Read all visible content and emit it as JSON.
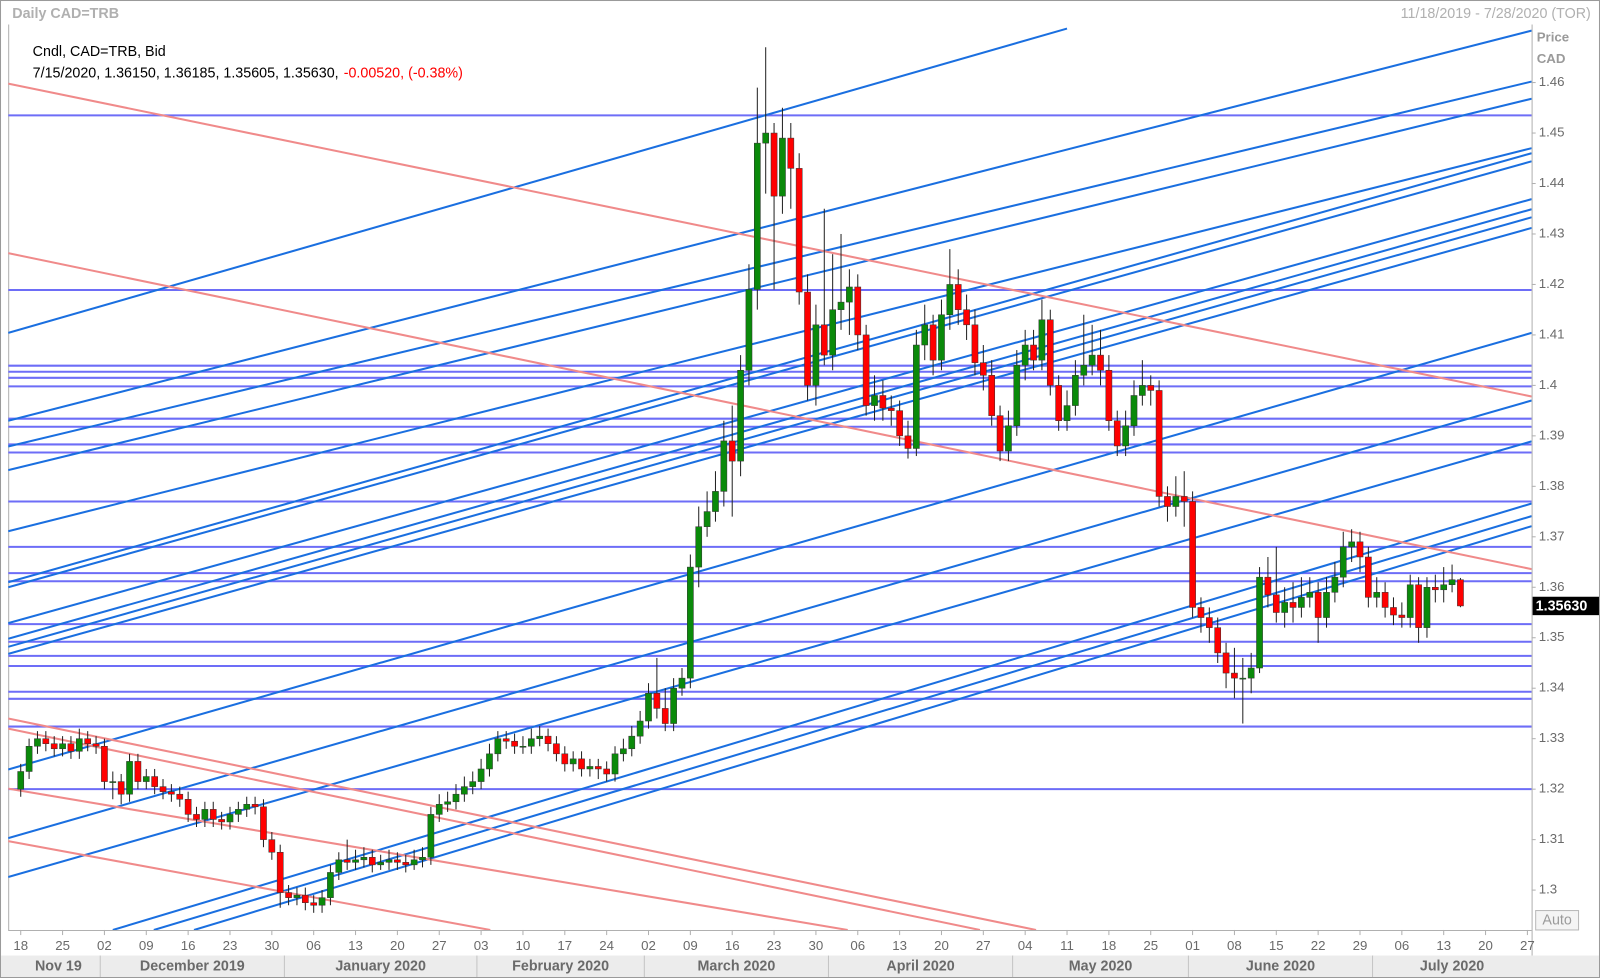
{
  "chart_data": {
    "type": "candlestick",
    "title": "Daily CAD=TRB",
    "date_range": "11/18/2019 - 7/28/2020 (TOR)",
    "legend_title": "Cndl, CAD=TRB, Bid",
    "legend_values": "7/15/2020, 1.36150, 1.36185, 1.35605, 1.35630,",
    "legend_change": "-0.00520, (-0.38%)",
    "y_axis_label": [
      "Price",
      "CAD"
    ],
    "last_price_label": "1.35630",
    "button": "Auto",
    "up_color": "#0a8a0a",
    "down_color": "#ff0000",
    "open": [
      1.32,
      1.3235,
      1.3285,
      1.33,
      1.329,
      1.328,
      1.329,
      1.3275,
      1.33,
      1.329,
      1.3285,
      1.3215,
      1.3215,
      1.319,
      1.3255,
      1.3215,
      1.3225,
      1.3205,
      1.3195,
      1.319,
      1.318,
      1.315,
      1.314,
      1.316,
      1.314,
      1.3135,
      1.315,
      1.316,
      1.317,
      1.3165,
      1.31,
      1.3075,
      1.2995,
      1.2985,
      1.299,
      1.2975,
      1.297,
      1.2985,
      1.3035,
      1.306,
      1.3055,
      1.306,
      1.3065,
      1.305,
      1.3055,
      1.306,
      1.3055,
      1.305,
      1.306,
      1.3065,
      1.315,
      1.317,
      1.3175,
      1.319,
      1.3205,
      1.3215,
      1.324,
      1.327,
      1.33,
      1.3295,
      1.3285,
      1.3285,
      1.33,
      1.3305,
      1.329,
      1.327,
      1.325,
      1.326,
      1.324,
      1.3245,
      1.324,
      1.323,
      1.327,
      1.328,
      1.3305,
      1.3335,
      1.339,
      1.336,
      1.333,
      1.34,
      1.342,
      1.364,
      1.372,
      1.375,
      1.379,
      1.389,
      1.385,
      1.403,
      1.419,
      1.448,
      1.45,
      1.4375,
      1.449,
      1.443,
      1.4185,
      1.4,
      1.412,
      1.406,
      1.415,
      1.4165,
      1.4195,
      1.41,
      1.396,
      1.398,
      1.3955,
      1.395,
      1.39,
      1.3875,
      1.408,
      1.412,
      1.405,
      1.414,
      1.42,
      1.415,
      1.412,
      1.4045,
      1.402,
      1.394,
      1.387,
      1.392,
      1.404,
      1.408,
      1.405,
      1.413,
      1.4,
      1.393,
      1.396,
      1.402,
      1.404,
      1.406,
      1.403,
      1.393,
      1.388,
      1.392,
      1.398,
      1.4,
      1.399,
      1.378,
      1.376,
      1.378,
      1.377,
      1.356,
      1.354,
      1.352,
      1.347,
      1.343,
      1.342,
      1.342,
      1.344,
      1.362,
      1.3585,
      1.355,
      1.357,
      1.356,
      1.358,
      1.359,
      1.354,
      1.359,
      1.362,
      1.368,
      1.369,
      1.366,
      1.358,
      1.359,
      1.356,
      1.3545,
      1.354,
      1.3605,
      1.352,
      1.36,
      1.3595,
      1.3605,
      1.3615
    ],
    "high": [
      1.325,
      1.33,
      1.3315,
      1.3315,
      1.3305,
      1.3305,
      1.3305,
      1.332,
      1.3315,
      1.3305,
      1.33,
      1.3235,
      1.323,
      1.327,
      1.327,
      1.324,
      1.324,
      1.322,
      1.321,
      1.3205,
      1.3195,
      1.3165,
      1.3175,
      1.3175,
      1.3155,
      1.3165,
      1.3175,
      1.3185,
      1.3185,
      1.318,
      1.3115,
      1.309,
      1.301,
      1.3005,
      1.3005,
      1.299,
      1.3,
      1.305,
      1.3075,
      1.31,
      1.308,
      1.3085,
      1.308,
      1.307,
      1.308,
      1.3075,
      1.307,
      1.308,
      1.3085,
      1.3165,
      1.319,
      1.3195,
      1.321,
      1.3225,
      1.3235,
      1.326,
      1.329,
      1.3315,
      1.3315,
      1.331,
      1.3305,
      1.332,
      1.3325,
      1.332,
      1.3305,
      1.3285,
      1.3275,
      1.3275,
      1.326,
      1.326,
      1.3255,
      1.3285,
      1.33,
      1.3325,
      1.3355,
      1.341,
      1.346,
      1.34,
      1.342,
      1.344,
      1.3665,
      1.376,
      1.379,
      1.383,
      1.393,
      1.396,
      1.406,
      1.424,
      1.459,
      1.467,
      1.452,
      1.455,
      1.452,
      1.446,
      1.422,
      1.416,
      1.435,
      1.426,
      1.43,
      1.423,
      1.422,
      1.412,
      1.402,
      1.401,
      1.398,
      1.397,
      1.393,
      1.411,
      1.416,
      1.414,
      1.417,
      1.427,
      1.423,
      1.418,
      1.415,
      1.408,
      1.405,
      1.396,
      1.395,
      1.407,
      1.411,
      1.411,
      1.417,
      1.415,
      1.402,
      1.399,
      1.405,
      1.414,
      1.412,
      1.411,
      1.406,
      1.395,
      1.395,
      1.401,
      1.405,
      1.402,
      1.401,
      1.38,
      1.382,
      1.383,
      1.379,
      1.358,
      1.356,
      1.354,
      1.349,
      1.348,
      1.346,
      1.347,
      1.364,
      1.366,
      1.368,
      1.36,
      1.361,
      1.362,
      1.362,
      1.361,
      1.362,
      1.365,
      1.371,
      1.3715,
      1.371,
      1.368,
      1.362,
      1.361,
      1.358,
      1.357,
      1.3625,
      1.362,
      1.362,
      1.3625,
      1.364,
      1.3645,
      1.36185
    ],
    "low": [
      1.3185,
      1.322,
      1.327,
      1.3275,
      1.3265,
      1.3265,
      1.326,
      1.326,
      1.3275,
      1.327,
      1.32,
      1.318,
      1.317,
      1.3175,
      1.32,
      1.32,
      1.319,
      1.318,
      1.3175,
      1.3165,
      1.3135,
      1.3125,
      1.3125,
      1.3125,
      1.312,
      1.312,
      1.3135,
      1.3145,
      1.315,
      1.3085,
      1.306,
      1.2965,
      1.297,
      1.297,
      1.296,
      1.2955,
      1.2955,
      1.297,
      1.302,
      1.304,
      1.304,
      1.3045,
      1.3035,
      1.304,
      1.304,
      1.304,
      1.3035,
      1.304,
      1.3045,
      1.305,
      1.3135,
      1.3155,
      1.316,
      1.3175,
      1.319,
      1.32,
      1.3225,
      1.3255,
      1.328,
      1.327,
      1.327,
      1.327,
      1.3285,
      1.3275,
      1.3255,
      1.3235,
      1.3235,
      1.3225,
      1.3225,
      1.322,
      1.3215,
      1.3215,
      1.3255,
      1.3265,
      1.329,
      1.332,
      1.334,
      1.3315,
      1.3315,
      1.3385,
      1.34,
      1.36,
      1.37,
      1.373,
      1.376,
      1.374,
      1.382,
      1.4,
      1.415,
      1.438,
      1.419,
      1.434,
      1.435,
      1.416,
      1.397,
      1.396,
      1.404,
      1.403,
      1.411,
      1.41,
      1.407,
      1.394,
      1.393,
      1.393,
      1.392,
      1.388,
      1.3855,
      1.386,
      1.405,
      1.402,
      1.403,
      1.411,
      1.412,
      1.409,
      1.402,
      1.399,
      1.392,
      1.385,
      1.385,
      1.39,
      1.401,
      1.403,
      1.403,
      1.398,
      1.391,
      1.391,
      1.394,
      1.4,
      1.402,
      1.4,
      1.391,
      1.386,
      1.386,
      1.39,
      1.396,
      1.396,
      1.376,
      1.373,
      1.374,
      1.372,
      1.354,
      1.351,
      1.349,
      1.345,
      1.34,
      1.338,
      1.333,
      1.339,
      1.343,
      1.356,
      1.353,
      1.352,
      1.353,
      1.354,
      1.356,
      1.349,
      1.352,
      1.357,
      1.36,
      1.365,
      1.363,
      1.356,
      1.356,
      1.354,
      1.3525,
      1.352,
      1.352,
      1.349,
      1.35,
      1.357,
      1.357,
      1.359,
      1.35605
    ],
    "close": [
      1.3235,
      1.3285,
      1.33,
      1.329,
      1.328,
      1.329,
      1.3275,
      1.33,
      1.329,
      1.3285,
      1.3215,
      1.3215,
      1.319,
      1.3255,
      1.3215,
      1.3225,
      1.3205,
      1.3195,
      1.319,
      1.318,
      1.315,
      1.314,
      1.316,
      1.314,
      1.3135,
      1.315,
      1.316,
      1.317,
      1.3165,
      1.31,
      1.3075,
      1.2995,
      1.2985,
      1.299,
      1.2975,
      1.297,
      1.2985,
      1.3035,
      1.306,
      1.3055,
      1.306,
      1.3065,
      1.305,
      1.3055,
      1.306,
      1.3055,
      1.305,
      1.306,
      1.3065,
      1.315,
      1.317,
      1.3175,
      1.319,
      1.3205,
      1.3215,
      1.324,
      1.327,
      1.33,
      1.3295,
      1.3285,
      1.3285,
      1.33,
      1.3305,
      1.329,
      1.327,
      1.325,
      1.326,
      1.324,
      1.3245,
      1.324,
      1.323,
      1.327,
      1.328,
      1.3305,
      1.3335,
      1.339,
      1.336,
      1.333,
      1.34,
      1.342,
      1.364,
      1.372,
      1.375,
      1.379,
      1.389,
      1.385,
      1.403,
      1.419,
      1.448,
      1.45,
      1.4375,
      1.449,
      1.443,
      1.4185,
      1.4,
      1.412,
      1.406,
      1.415,
      1.4165,
      1.4195,
      1.41,
      1.396,
      1.398,
      1.3955,
      1.395,
      1.39,
      1.3875,
      1.408,
      1.412,
      1.405,
      1.414,
      1.42,
      1.415,
      1.412,
      1.4045,
      1.402,
      1.394,
      1.387,
      1.392,
      1.404,
      1.408,
      1.405,
      1.413,
      1.4,
      1.393,
      1.396,
      1.402,
      1.404,
      1.406,
      1.403,
      1.393,
      1.388,
      1.392,
      1.398,
      1.4,
      1.399,
      1.378,
      1.376,
      1.378,
      1.377,
      1.356,
      1.354,
      1.352,
      1.347,
      1.343,
      1.342,
      1.342,
      1.344,
      1.362,
      1.3585,
      1.355,
      1.357,
      1.356,
      1.358,
      1.359,
      1.354,
      1.359,
      1.362,
      1.368,
      1.369,
      1.366,
      1.358,
      1.359,
      1.356,
      1.3545,
      1.354,
      1.3605,
      1.352,
      1.36,
      1.3595,
      1.3605,
      1.3615,
      1.3563
    ],
    "xlim": [
      -1.5,
      180.5
    ],
    "xticks": [
      {
        "value": 0,
        "label": "18"
      },
      {
        "value": 5,
        "label": "25"
      },
      {
        "value": 10,
        "label": "02"
      },
      {
        "value": 15,
        "label": "09"
      },
      {
        "value": 20,
        "label": "16"
      },
      {
        "value": 25,
        "label": "23"
      },
      {
        "value": 30,
        "label": "30"
      },
      {
        "value": 35,
        "label": "06"
      },
      {
        "value": 40,
        "label": "13"
      },
      {
        "value": 45,
        "label": "20"
      },
      {
        "value": 50,
        "label": "27"
      },
      {
        "value": 55,
        "label": "03"
      },
      {
        "value": 60,
        "label": "10"
      },
      {
        "value": 65,
        "label": "17"
      },
      {
        "value": 70,
        "label": "24"
      },
      {
        "value": 75,
        "label": "02"
      },
      {
        "value": 80,
        "label": "09"
      },
      {
        "value": 85,
        "label": "16"
      },
      {
        "value": 90,
        "label": "23"
      },
      {
        "value": 95,
        "label": "30"
      },
      {
        "value": 100,
        "label": "06"
      },
      {
        "value": 105,
        "label": "13"
      },
      {
        "value": 110,
        "label": "20"
      },
      {
        "value": 115,
        "label": "27"
      },
      {
        "value": 120,
        "label": "04"
      },
      {
        "value": 125,
        "label": "11"
      },
      {
        "value": 130,
        "label": "18"
      },
      {
        "value": 135,
        "label": "25"
      },
      {
        "value": 140,
        "label": "01"
      },
      {
        "value": 145,
        "label": "08"
      },
      {
        "value": 150,
        "label": "15"
      },
      {
        "value": 155,
        "label": "22"
      },
      {
        "value": 160,
        "label": "29"
      },
      {
        "value": 165,
        "label": "06"
      },
      {
        "value": 170,
        "label": "13"
      },
      {
        "value": 175,
        "label": "20"
      },
      {
        "value": 180,
        "label": "27"
      }
    ],
    "month_labels": [
      {
        "value": 0,
        "label": "Nov 19"
      },
      {
        "value": 10,
        "label": "December 2019"
      },
      {
        "value": 32,
        "label": "January 2020"
      },
      {
        "value": 55,
        "label": "February 2020"
      },
      {
        "value": 75,
        "label": "March 2020"
      },
      {
        "value": 97,
        "label": "April 2020"
      },
      {
        "value": 119,
        "label": "May 2020"
      },
      {
        "value": 140,
        "label": "June 2020"
      },
      {
        "value": 162,
        "label": "July 2020"
      }
    ],
    "ylim": [
      1.2921,
      1.4715
    ],
    "yticks": [
      1.3,
      1.31,
      1.32,
      1.33,
      1.34,
      1.35,
      1.36,
      1.37,
      1.38,
      1.39,
      1.4,
      1.41,
      1.42,
      1.43,
      1.44,
      1.45,
      1.46
    ],
    "hline_color": "#6d6df7",
    "hlines": [
      1.4535,
      1.4189,
      1.4039,
      1.4027,
      1.4015,
      1.3998,
      1.3934,
      1.3918,
      1.3883,
      1.3867,
      1.377,
      1.368,
      1.3628,
      1.3612,
      1.3527,
      1.3492,
      1.3464,
      1.3444,
      1.3393,
      1.3379,
      1.3324,
      1.32
    ],
    "trendlines": [
      {
        "color": "#1a6fe0",
        "x": [
          -1.5,
          125.0
        ],
        "y": [
          1.4104,
          1.4707
        ]
      },
      {
        "color": "#1a6fe0",
        "x": [
          -1.5,
          180.5
        ],
        "y": [
          1.393,
          1.4703
        ]
      },
      {
        "color": "#1a6fe0",
        "x": [
          -1.5,
          180.5
        ],
        "y": [
          1.3879,
          1.4602
        ]
      },
      {
        "color": "#1a6fe0",
        "x": [
          -1.5,
          180.5
        ],
        "y": [
          1.3832,
          1.4568
        ]
      },
      {
        "color": "#1a6fe0",
        "x": [
          -1.5,
          180.5
        ],
        "y": [
          1.3711,
          1.447
        ]
      },
      {
        "color": "#1a6fe0",
        "x": [
          -1.5,
          180.5
        ],
        "y": [
          1.361,
          1.446
        ]
      },
      {
        "color": "#1a6fe0",
        "x": [
          -1.5,
          180.5
        ],
        "y": [
          1.36,
          1.4444
        ]
      },
      {
        "color": "#1a6fe0",
        "x": [
          -1.5,
          180.5
        ],
        "y": [
          1.3529,
          1.4369
        ]
      },
      {
        "color": "#1a6fe0",
        "x": [
          -1.5,
          180.5
        ],
        "y": [
          1.3498,
          1.4349
        ]
      },
      {
        "color": "#1a6fe0",
        "x": [
          -1.5,
          180.5
        ],
        "y": [
          1.3482,
          1.4333
        ]
      },
      {
        "color": "#1a6fe0",
        "x": [
          -1.5,
          180.5
        ],
        "y": [
          1.3468,
          1.4312
        ]
      },
      {
        "color": "#1a6fe0",
        "x": [
          -1.5,
          180.5
        ],
        "y": [
          1.3239,
          1.4104
        ]
      },
      {
        "color": "#1a6fe0",
        "x": [
          -1.5,
          180.5
        ],
        "y": [
          1.3103,
          1.397
        ]
      },
      {
        "color": "#1a6fe0",
        "x": [
          -1.5,
          180.5
        ],
        "y": [
          1.3026,
          1.3889
        ]
      },
      {
        "color": "#1a6fe0",
        "x": [
          11.0,
          180.5
        ],
        "y": [
          1.2921,
          1.3766
        ]
      },
      {
        "color": "#1a6fe0",
        "x": [
          15.9,
          180.5
        ],
        "y": [
          1.2921,
          1.3741
        ]
      },
      {
        "color": "#1a6fe0",
        "x": [
          20.7,
          180.5
        ],
        "y": [
          1.2921,
          1.3721
        ]
      },
      {
        "color": "#f08a8a",
        "x": [
          -1.5,
          180.5
        ],
        "y": [
          1.4598,
          1.3978
        ]
      },
      {
        "color": "#f08a8a",
        "x": [
          -1.5,
          180.5
        ],
        "y": [
          1.4262,
          1.3636
        ]
      },
      {
        "color": "#f08a8a",
        "x": [
          -1.5,
          121.3
        ],
        "y": [
          1.334,
          1.2921
        ]
      },
      {
        "color": "#f08a8a",
        "x": [
          -1.5,
          114.6
        ],
        "y": [
          1.332,
          1.2921
        ]
      },
      {
        "color": "#f08a8a",
        "x": [
          -1.5,
          98.8
        ],
        "y": [
          1.3201,
          1.2921
        ]
      },
      {
        "color": "#f08a8a",
        "x": [
          -1.5,
          56.1
        ],
        "y": [
          1.3097,
          1.2921
        ]
      }
    ]
  }
}
